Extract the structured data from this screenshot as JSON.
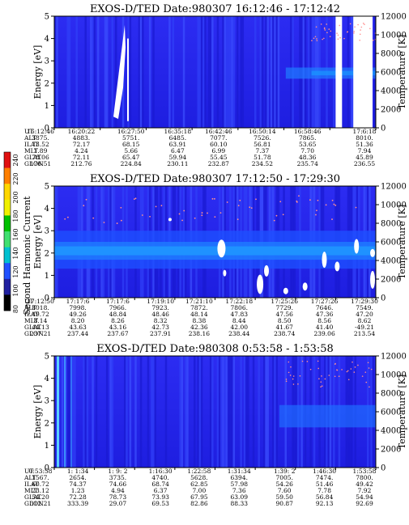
{
  "chart_data": [
    {
      "type": "heatmap",
      "title": "EXOS-D/TED   Date:980307   16:12:46 - 17:12:42",
      "ylabel": "Energy [eV]",
      "y2label": "Temperature [K]",
      "ylim": [
        0,
        5
      ],
      "y2lim": [
        0,
        12000
      ],
      "yticks": [
        "0",
        "1",
        "2",
        "3",
        "4",
        "5"
      ],
      "y2ticks": [
        "0",
        "2000",
        "4000",
        "6000",
        "8000",
        "10000",
        "12000"
      ],
      "grid": false,
      "data_gaps": [
        [
          0.875,
          0.895
        ],
        [
          0.93,
          0.99
        ]
      ],
      "ephemeris_labels": [
        "UT",
        "ALT",
        "ILAT",
        "MLT",
        "GLAT",
        "GLON"
      ],
      "ephemeris": [
        [
          "16:12:46",
          "3875.",
          "73.52",
          "1.89",
          "78.06",
          "176.51"
        ],
        [
          "16:20:22",
          "4883.",
          "72.17",
          "4.24",
          "72.11",
          "212.76"
        ],
        [
          "16:27:50",
          "5751.",
          "68.15",
          "5.66",
          "65.47",
          "224.84"
        ],
        [
          "16:35:18",
          "6485.",
          "63.91",
          "6.47",
          "59.94",
          "230.11"
        ],
        [
          "16:42:46",
          "7077.",
          "60.10",
          "6.99",
          "55.45",
          "232.87"
        ],
        [
          "16:50:14",
          "7526.",
          "56.81",
          "7.37",
          "51.78",
          "234.52"
        ],
        [
          "16:58:46",
          "7865.",
          "53.65",
          "7.70",
          "48.36",
          "235.74"
        ],
        [
          "17:6:18",
          "8010.",
          "51.36",
          "7.94",
          "45.89",
          "236.55"
        ]
      ]
    },
    {
      "type": "heatmap",
      "title": "EXOS-D/TED   Date:980307   17:12:50 - 17:29:30",
      "ylabel": "Energy [eV]",
      "y2label": "Temperature [K]",
      "ylim": [
        0,
        5
      ],
      "y2lim": [
        0,
        12000
      ],
      "yticks": [
        "0",
        "1",
        "2",
        "3",
        "4",
        "5"
      ],
      "y2ticks": [
        "0",
        "2000",
        "4000",
        "6000",
        "8000",
        "10000",
        "12000"
      ],
      "grid": false,
      "ephemeris_labels": [
        "UT",
        "ALT",
        "ILAT",
        "MLT",
        "GLAT",
        "GLON"
      ],
      "ephemeris": [
        [
          "17:12:50",
          "8018.",
          "49.72",
          "8.14",
          "44.13",
          "237.21"
        ],
        [
          "17:17:6",
          "7998.",
          "49.26",
          "8.20",
          "43.63",
          "237.44"
        ],
        [
          "17:17:6",
          "7966.",
          "48.84",
          "8.26",
          "43.16",
          "237.67"
        ],
        [
          "17:19:10",
          "7923.",
          "48.46",
          "8.32",
          "42.73",
          "237.91"
        ],
        [
          "17:21:10",
          "7872.",
          "48.14",
          "8.38",
          "42.36",
          "238.16"
        ],
        [
          "17:22:18",
          "7806.",
          "47.83",
          "8.44",
          "42.00",
          "238.44"
        ],
        [
          "17:25:26",
          "7729.",
          "47.56",
          "8.50",
          "41.67",
          "238.74"
        ],
        [
          "17:27:26",
          "7646.",
          "47.36",
          "8.56",
          "41.40",
          "239.06"
        ],
        [
          "17:29:30",
          "7549.",
          "47.20",
          "8.62",
          "-49.21",
          "213.54"
        ]
      ]
    },
    {
      "type": "heatmap",
      "title": "EXOS-D/TED   Date:980308   0:53:58 - 1:53:58",
      "ylabel": "Energy [eV]",
      "y2label": "Temperature [K]",
      "ylim": [
        0,
        5
      ],
      "y2lim": [
        0,
        12000
      ],
      "yticks": [
        "0",
        "1",
        "2",
        "3",
        "4",
        "5"
      ],
      "y2ticks": [
        "0",
        "2000",
        "4000",
        "6000",
        "8000",
        "10000",
        "12000"
      ],
      "grid": false,
      "ephemeris_labels": [
        "UT",
        "ALT",
        "ILAT",
        "MLT",
        "GLAT",
        "GLON"
      ],
      "ephemeris": [
        [
          "0:53:58",
          "1567.",
          "60.72",
          "23.12",
          "54.20",
          "312.21"
        ],
        [
          "1: 1:34",
          "2654.",
          "74.37",
          "1.23",
          "72.28",
          "333.39"
        ],
        [
          "1: 9: 2",
          "3735.",
          "74.66",
          "4.94",
          "78.73",
          "29.07"
        ],
        [
          "1:16:30",
          "4740.",
          "68.74",
          "6.37",
          "73.93",
          "69.53"
        ],
        [
          "1:22:58",
          "5628.",
          "62.85",
          "7.00",
          "67.95",
          "82.86"
        ],
        [
          "1:31:34",
          "6394.",
          "57.98",
          "7.36",
          "63.09",
          "88.33"
        ],
        [
          "1:39: 2",
          "7005.",
          "54.26",
          "7.60",
          "59.50",
          "90.87"
        ],
        [
          "1:46:30",
          "7474.",
          "51.46",
          "7.78",
          "56.84",
          "92.13"
        ],
        [
          "1:53:58",
          "7800.",
          "49.42",
          "7.92",
          "54.94",
          "92.69"
        ]
      ]
    }
  ],
  "colorbar": {
    "label": "Second Harmonic Current",
    "ticks": [
      "240",
      "220",
      "200",
      "180",
      "160",
      "140",
      "120",
      "100",
      "80"
    ],
    "colors": [
      "#e01010",
      "#ff7f00",
      "#ffd700",
      "#f0f000",
      "#00c000",
      "#40e070",
      "#00c0d0",
      "#2050ff",
      "#2020a0",
      "#000000"
    ]
  }
}
